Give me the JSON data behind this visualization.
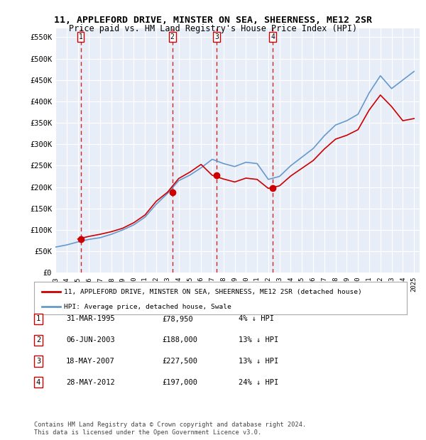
{
  "title": "11, APPLEFORD DRIVE, MINSTER ON SEA, SHEERNESS, ME12 2SR",
  "subtitle": "Price paid vs. HM Land Registry's House Price Index (HPI)",
  "ylabel": "",
  "ylim": [
    0,
    570000
  ],
  "yticks": [
    0,
    50000,
    100000,
    150000,
    200000,
    250000,
    300000,
    350000,
    400000,
    450000,
    500000,
    550000
  ],
  "ytick_labels": [
    "£0",
    "£50K",
    "£100K",
    "£150K",
    "£200K",
    "£250K",
    "£300K",
    "£350K",
    "£400K",
    "£450K",
    "£500K",
    "£550K"
  ],
  "background_color": "#e8eef8",
  "plot_bg_color": "#e8eef8",
  "grid_color": "#ffffff",
  "sale_dates_num": [
    1995.25,
    2003.43,
    2007.38,
    2012.41
  ],
  "sale_prices": [
    78950,
    188000,
    227500,
    197000
  ],
  "sale_labels": [
    "1",
    "2",
    "3",
    "4"
  ],
  "sale_label_pct": [
    "4% ↓ HPI",
    "13% ↓ HPI",
    "13% ↓ HPI",
    "24% ↓ HPI"
  ],
  "sale_label_dates": [
    "31-MAR-1995",
    "06-JUN-2003",
    "18-MAY-2007",
    "28-MAY-2012"
  ],
  "red_line_color": "#cc0000",
  "blue_line_color": "#6699cc",
  "marker_color": "#cc0000",
  "dashed_line_color": "#cc0000",
  "legend_red_label": "11, APPLEFORD DRIVE, MINSTER ON SEA, SHEERNESS, ME12 2SR (detached house)",
  "legend_blue_label": "HPI: Average price, detached house, Swale",
  "footer": "Contains HM Land Registry data © Crown copyright and database right 2024.\nThis data is licensed under the Open Government Licence v3.0.",
  "hpi_years": [
    1993,
    1994,
    1995,
    1996,
    1997,
    1998,
    1999,
    2000,
    2001,
    2002,
    2003,
    2004,
    2005,
    2006,
    2007,
    2008,
    2009,
    2010,
    2011,
    2012,
    2013,
    2014,
    2015,
    2016,
    2017,
    2018,
    2019,
    2020,
    2021,
    2022,
    2023,
    2024,
    2025
  ],
  "hpi_values": [
    60000,
    65000,
    72000,
    78000,
    82000,
    90000,
    100000,
    112000,
    130000,
    160000,
    185000,
    215000,
    228000,
    245000,
    265000,
    255000,
    248000,
    258000,
    255000,
    218000,
    225000,
    250000,
    270000,
    290000,
    320000,
    345000,
    355000,
    370000,
    420000,
    460000,
    430000,
    450000,
    470000
  ],
  "price_line_years": [
    1993,
    1994,
    1995,
    1996,
    1997,
    1998,
    1999,
    2000,
    2001,
    2002,
    2003,
    2004,
    2005,
    2006,
    2007,
    2008,
    2009,
    2010,
    2011,
    2012,
    2013,
    2014,
    2015,
    2016,
    2017,
    2018,
    2019,
    2020,
    2021,
    2022,
    2023,
    2024,
    2025
  ],
  "price_line_values": [
    null,
    null,
    78950,
    85000,
    90000,
    96000,
    104000,
    117000,
    135000,
    167000,
    188000,
    220000,
    235000,
    253000,
    227500,
    219000,
    212000,
    221000,
    218000,
    197000,
    203000,
    226000,
    244000,
    262000,
    289000,
    312000,
    321000,
    334000,
    380000,
    415000,
    388000,
    355000,
    360000
  ],
  "xlim_left": 1993,
  "xlim_right": 2025.5,
  "xtick_years": [
    1993,
    1994,
    1995,
    1996,
    1997,
    1998,
    1999,
    2000,
    2001,
    2002,
    2003,
    2004,
    2005,
    2006,
    2007,
    2008,
    2009,
    2010,
    2011,
    2012,
    2013,
    2014,
    2015,
    2016,
    2017,
    2018,
    2019,
    2020,
    2021,
    2022,
    2023,
    2024,
    2025
  ]
}
